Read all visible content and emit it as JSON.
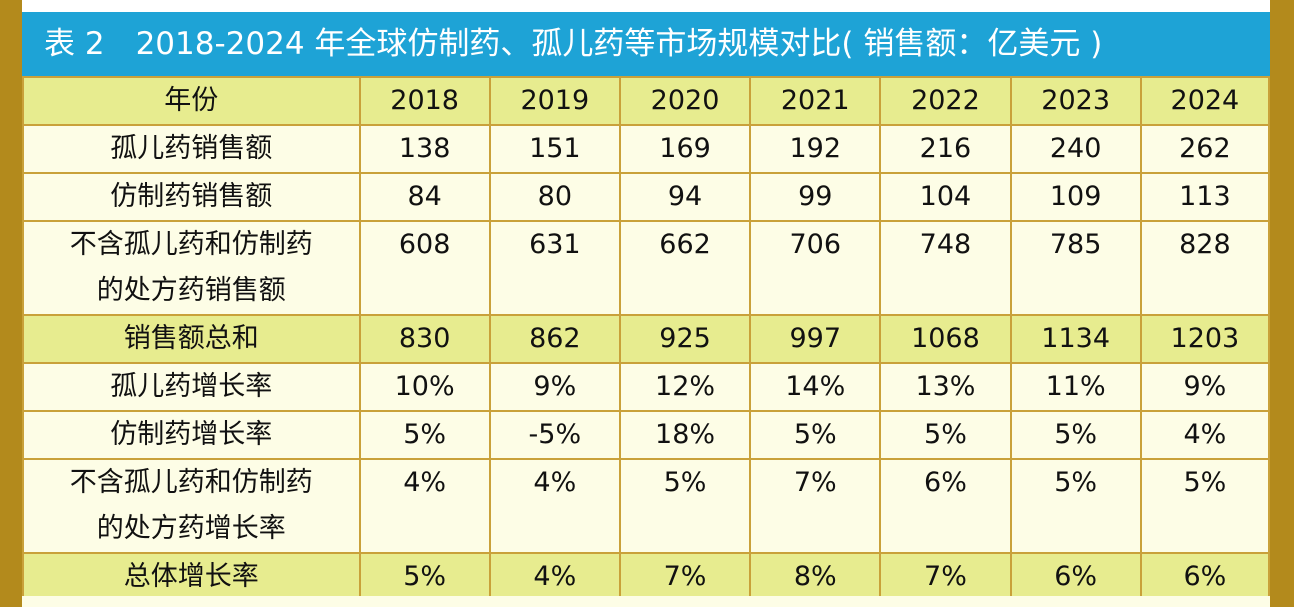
{
  "title": "表 2　2018-2024 年全球仿制药、孤儿药等市场规模对比( 销售额：亿美元 )",
  "header": {
    "label": "年份",
    "years": [
      "2018",
      "2019",
      "2020",
      "2021",
      "2022",
      "2023",
      "2024"
    ]
  },
  "rows": [
    {
      "label": "孤儿药销售额",
      "values": [
        "138",
        "151",
        "169",
        "192",
        "216",
        "240",
        "262"
      ]
    },
    {
      "label": "仿制药销售额",
      "values": [
        "84",
        "80",
        "94",
        "99",
        "104",
        "109",
        "113"
      ]
    },
    {
      "label_line1": "不含孤儿药和仿制药",
      "label_line2": "的处方药销售额",
      "values": [
        "608",
        "631",
        "662",
        "706",
        "748",
        "785",
        "828"
      ]
    },
    {
      "label": "销售额总和",
      "values": [
        "830",
        "862",
        "925",
        "997",
        "1068",
        "1134",
        "1203"
      ]
    },
    {
      "label": "孤儿药增长率",
      "values": [
        "10%",
        "9%",
        "12%",
        "14%",
        "13%",
        "11%",
        "9%"
      ]
    },
    {
      "label": "仿制药增长率",
      "values": [
        "5%",
        "-5%",
        "18%",
        "5%",
        "5%",
        "5%",
        "4%"
      ]
    },
    {
      "label_line1": "不含孤儿药和仿制药",
      "label_line2": "的处方药增长率",
      "values": [
        "4%",
        "4%",
        "5%",
        "7%",
        "6%",
        "5%",
        "5%"
      ]
    },
    {
      "label": "总体增长率",
      "values": [
        "5%",
        "4%",
        "7%",
        "8%",
        "7%",
        "6%",
        "6%"
      ]
    }
  ],
  "colors": {
    "title_bg": "#1ea3d6",
    "frame": "#b38a1c",
    "highlight_row": "#e7ec8f",
    "plain_row": "#fdfde6",
    "grid": "#c9a13a"
  }
}
